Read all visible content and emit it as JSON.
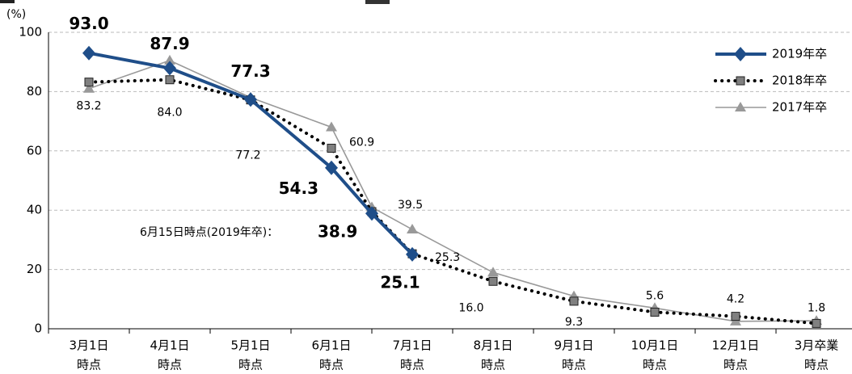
{
  "chart_data": {
    "type": "line",
    "y_label": "(%)",
    "annotation": "6月15日時点(2019年卒)：",
    "categories": [
      [
        "3月1日",
        "時点"
      ],
      [
        "4月1日",
        "時点"
      ],
      [
        "5月1日",
        "時点"
      ],
      [
        "6月1日",
        "時点"
      ],
      null,
      [
        "7月1日",
        "時点"
      ],
      [
        "8月1日",
        "時点"
      ],
      [
        "9月1日",
        "時点"
      ],
      [
        "10月1日",
        "時点"
      ],
      [
        "12月1日",
        "時点"
      ],
      [
        "3月卒業",
        "時点"
      ]
    ],
    "series": [
      {
        "name": "2019年卒",
        "color": "#1f4e89",
        "line": "solid",
        "marker": "diamond",
        "values": [
          93.0,
          87.9,
          77.3,
          54.3,
          38.9,
          25.1,
          null,
          null,
          null,
          null,
          null
        ],
        "value_labels": [
          "93.0",
          "87.9",
          "77.3",
          "54.3",
          "38.9",
          "25.1",
          null,
          null,
          null,
          null,
          null
        ]
      },
      {
        "name": "2018年卒",
        "color": "#808080",
        "line": "dotted",
        "marker": "square",
        "values": [
          83.2,
          84.0,
          77.2,
          60.9,
          39.5,
          25.3,
          16.0,
          9.3,
          5.6,
          4.2,
          1.8
        ],
        "value_labels": [
          "83.2",
          "84.0",
          "77.2",
          "60.9",
          "39.5",
          "25.3",
          "16.0",
          "9.3",
          "5.6",
          "4.2",
          "1.8"
        ]
      },
      {
        "name": "2017年卒",
        "color": "#999999",
        "line": "thin",
        "marker": "triangle",
        "values": [
          81,
          90.5,
          78,
          68,
          41,
          33.5,
          19,
          11,
          7,
          2.5,
          2.7
        ]
      }
    ],
    "ylim": [
      0,
      100
    ],
    "yticks": [
      0,
      20,
      40,
      60,
      80,
      100
    ],
    "grid": true,
    "legend": "top-right"
  }
}
